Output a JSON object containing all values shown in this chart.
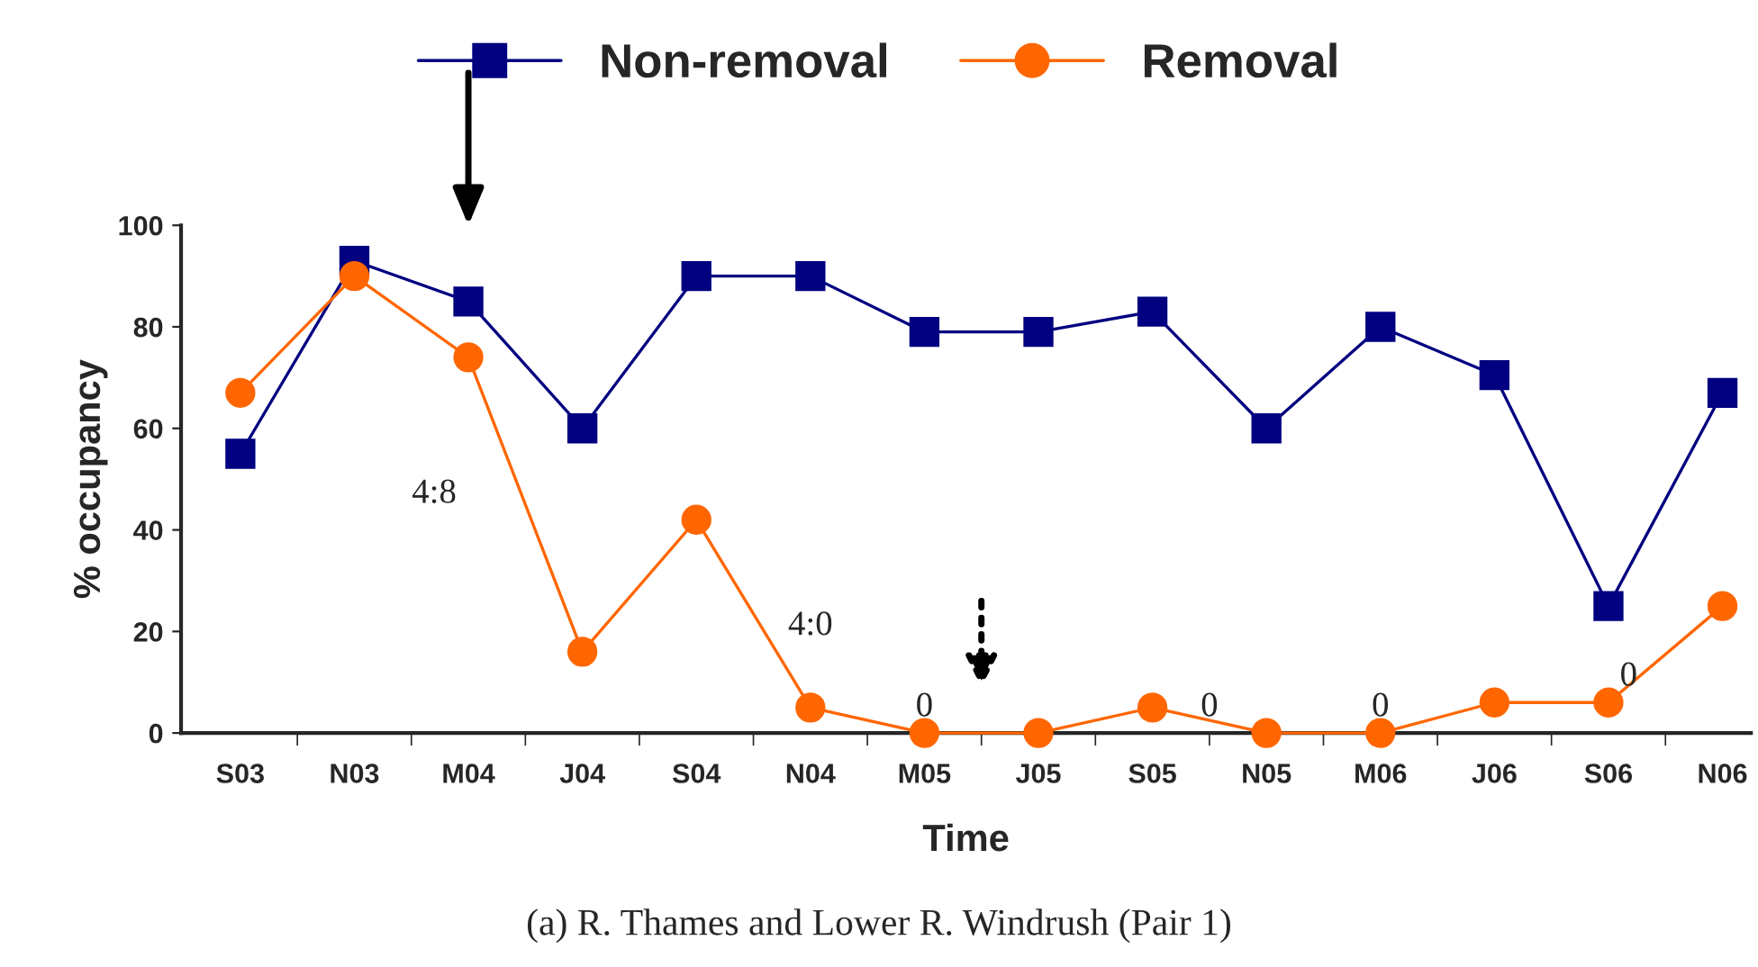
{
  "chart_data": {
    "type": "line",
    "xlabel": "Time",
    "ylabel": "% occupancy",
    "categories": [
      "S03",
      "N03",
      "M04",
      "J04",
      "S04",
      "N04",
      "M05",
      "J05",
      "S05",
      "N05",
      "M06",
      "J06",
      "S06",
      "N06"
    ],
    "series": [
      {
        "name": "Non-removal",
        "color": "#000080",
        "marker": "square",
        "values": [
          55,
          93,
          85,
          60,
          90,
          90,
          79,
          79,
          83,
          60,
          80,
          70.5,
          25,
          67
        ]
      },
      {
        "name": "Removal",
        "color": "#ff6600",
        "marker": "circle",
        "values": [
          67,
          90,
          74,
          16,
          42,
          5,
          0,
          0,
          5,
          0,
          0,
          6,
          6,
          25
        ]
      }
    ],
    "ylim": [
      0,
      100
    ],
    "yticks": [
      0,
      20,
      40,
      60,
      80,
      100
    ],
    "grid": false,
    "legend": "top",
    "line_style": "solid",
    "annotations": [
      "4:8",
      "4:0",
      "0",
      "0",
      "0",
      "0",
      "(a) R. Thames and Lower R. Windrush (Pair 1)"
    ]
  }
}
